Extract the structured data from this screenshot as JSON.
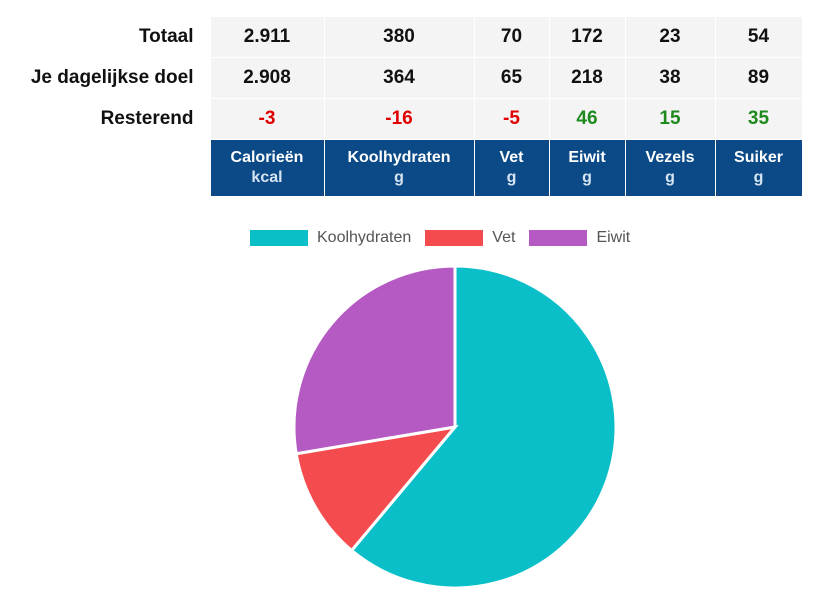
{
  "table": {
    "columns": [
      {
        "name": "Calorieën",
        "unit": "kcal"
      },
      {
        "name": "Koolhydraten",
        "unit": "g"
      },
      {
        "name": "Vet",
        "unit": "g"
      },
      {
        "name": "Eiwit",
        "unit": "g"
      },
      {
        "name": "Vezels",
        "unit": "g"
      },
      {
        "name": "Suiker",
        "unit": "g"
      }
    ],
    "rows": [
      {
        "label": "Totaal",
        "values": [
          "2.911",
          "380",
          "70",
          "172",
          "23",
          "54"
        ]
      },
      {
        "label": "Je dagelijkse doel",
        "values": [
          "2.908",
          "364",
          "65",
          "218",
          "38",
          "89"
        ]
      },
      {
        "label": "Resterend",
        "values": [
          "-3",
          "-16",
          "-5",
          "46",
          "15",
          "35"
        ]
      }
    ]
  },
  "colors": {
    "koolhydraten": "#0bbfc8",
    "vet": "#f44b4f",
    "eiwit": "#b45ac2",
    "header_bg": "#0b4a86",
    "negative": "#e00000",
    "positive": "#1e8a1e"
  },
  "chart_data": {
    "type": "pie",
    "legend_position": "top",
    "series": [
      {
        "name": "Koolhydraten",
        "value": 380
      },
      {
        "name": "Vet",
        "value": 70
      },
      {
        "name": "Eiwit",
        "value": 172
      }
    ]
  }
}
